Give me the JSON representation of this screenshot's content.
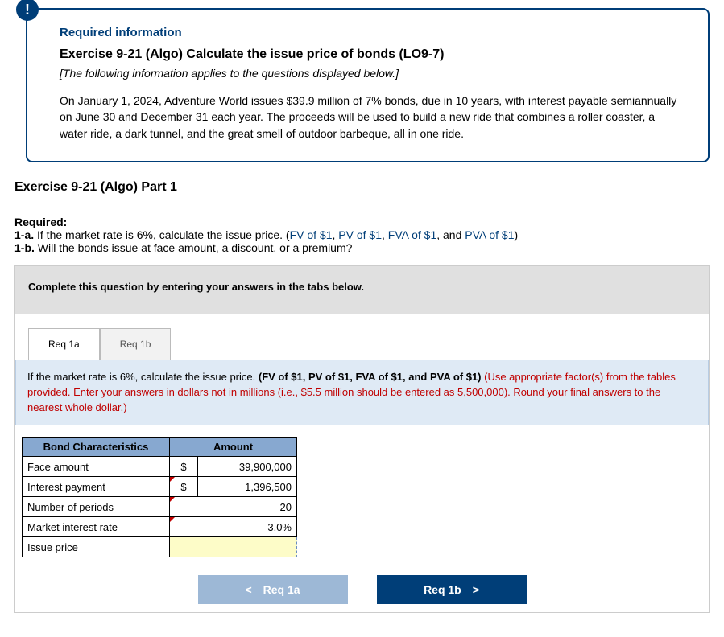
{
  "colors": {
    "primary": "#003e78",
    "instruction_bg": "#e0e0e0",
    "prompt_bg": "#dfeaf5",
    "table_header_bg": "#87a8d0",
    "highlight_cell_bg": "#fdfcc8",
    "error_red": "#c00000"
  },
  "badge": {
    "symbol": "!"
  },
  "info": {
    "label": "Required information",
    "title": "Exercise 9-21 (Algo) Calculate the issue price of bonds (LO9-7)",
    "applies": "[The following information applies to the questions displayed below.]",
    "body": "On January 1, 2024, Adventure World issues $39.9 million of 7% bonds, due in 10 years, with interest payable semiannually on June 30 and December 31 each year. The proceeds will be used to build a new ride that combines a roller coaster, a water ride, a dark tunnel, and the great smell of outdoor barbeque, all in one ride."
  },
  "part_title": "Exercise 9-21 (Algo) Part 1",
  "required": {
    "heading": "Required:",
    "line1_pre": "1-a. If the market rate is 6%, calculate the issue price. (",
    "links": [
      "FV of $1",
      "PV of $1",
      "FVA of $1",
      "PVA of $1"
    ],
    "line1_sep": ", ",
    "line1_last_sep": ", and ",
    "line1_post": ")",
    "line2": "1-b. Will the bonds issue at face amount, a discount, or a premium?"
  },
  "instruction": "Complete this question by entering your answers in the tabs below.",
  "tabs": {
    "a": "Req 1a",
    "b": "Req 1b"
  },
  "prompt": {
    "text_pre": "If the market rate is 6%, calculate the issue price. ",
    "bold": "(FV of $1, PV of $1, FVA of $1, and PVA of $1)",
    "red": " (Use appropriate factor(s) from the tables provided. Enter your answers in dollars not in millions (i.e., $5.5 million should be entered as 5,500,000). Round your final answers to the nearest whole dollar.)"
  },
  "table": {
    "headers": {
      "c1": "Bond Characteristics",
      "c2": "Amount"
    },
    "rows": [
      {
        "label": "Face amount",
        "currency": "$",
        "value": "39,900,000",
        "marker": false
      },
      {
        "label": "Interest payment",
        "currency": "$",
        "value": "1,396,500",
        "marker": true
      },
      {
        "label": "Number of periods",
        "currency": "",
        "value": "20",
        "marker": true
      },
      {
        "label": "Market interest rate",
        "currency": "",
        "value": "3.0%",
        "marker": true
      },
      {
        "label": "Issue price",
        "currency": "",
        "value": "",
        "marker": false,
        "highlight": true
      }
    ]
  },
  "nav": {
    "prev": {
      "label": "Req 1a",
      "chev": "<"
    },
    "next": {
      "label": "Req 1b",
      "chev": ">"
    }
  }
}
